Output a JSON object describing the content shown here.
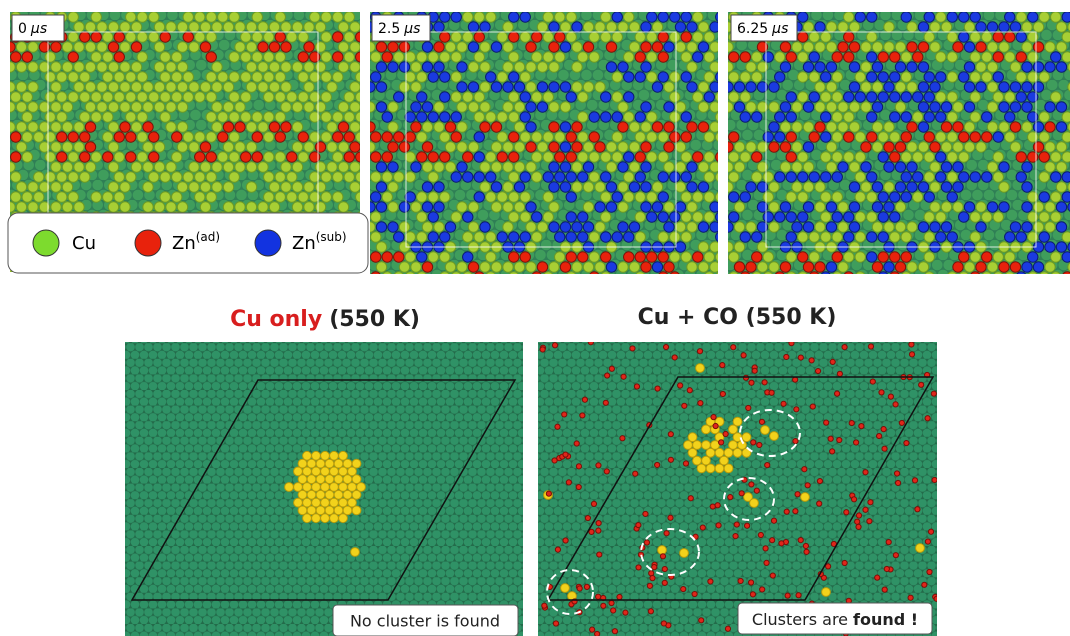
{
  "panels": [
    {
      "time": "0",
      "unit": "μs"
    },
    {
      "time": "2.5",
      "unit": "μs"
    },
    {
      "time": "6.25",
      "unit": "μs"
    }
  ],
  "legend": [
    {
      "label": "Cu"
    },
    {
      "label": "Zn",
      "sup": "(ad)"
    },
    {
      "label": "Zn",
      "sup": "(sub)"
    }
  ],
  "comparison": [
    {
      "title_highlight": "Cu only",
      "title_rest": "(550 K)",
      "caption": "No cluster is found"
    },
    {
      "title": "Cu + CO (550 K)",
      "caption_prefix": "Clusters are",
      "caption_emphasis": "found !"
    }
  ]
}
